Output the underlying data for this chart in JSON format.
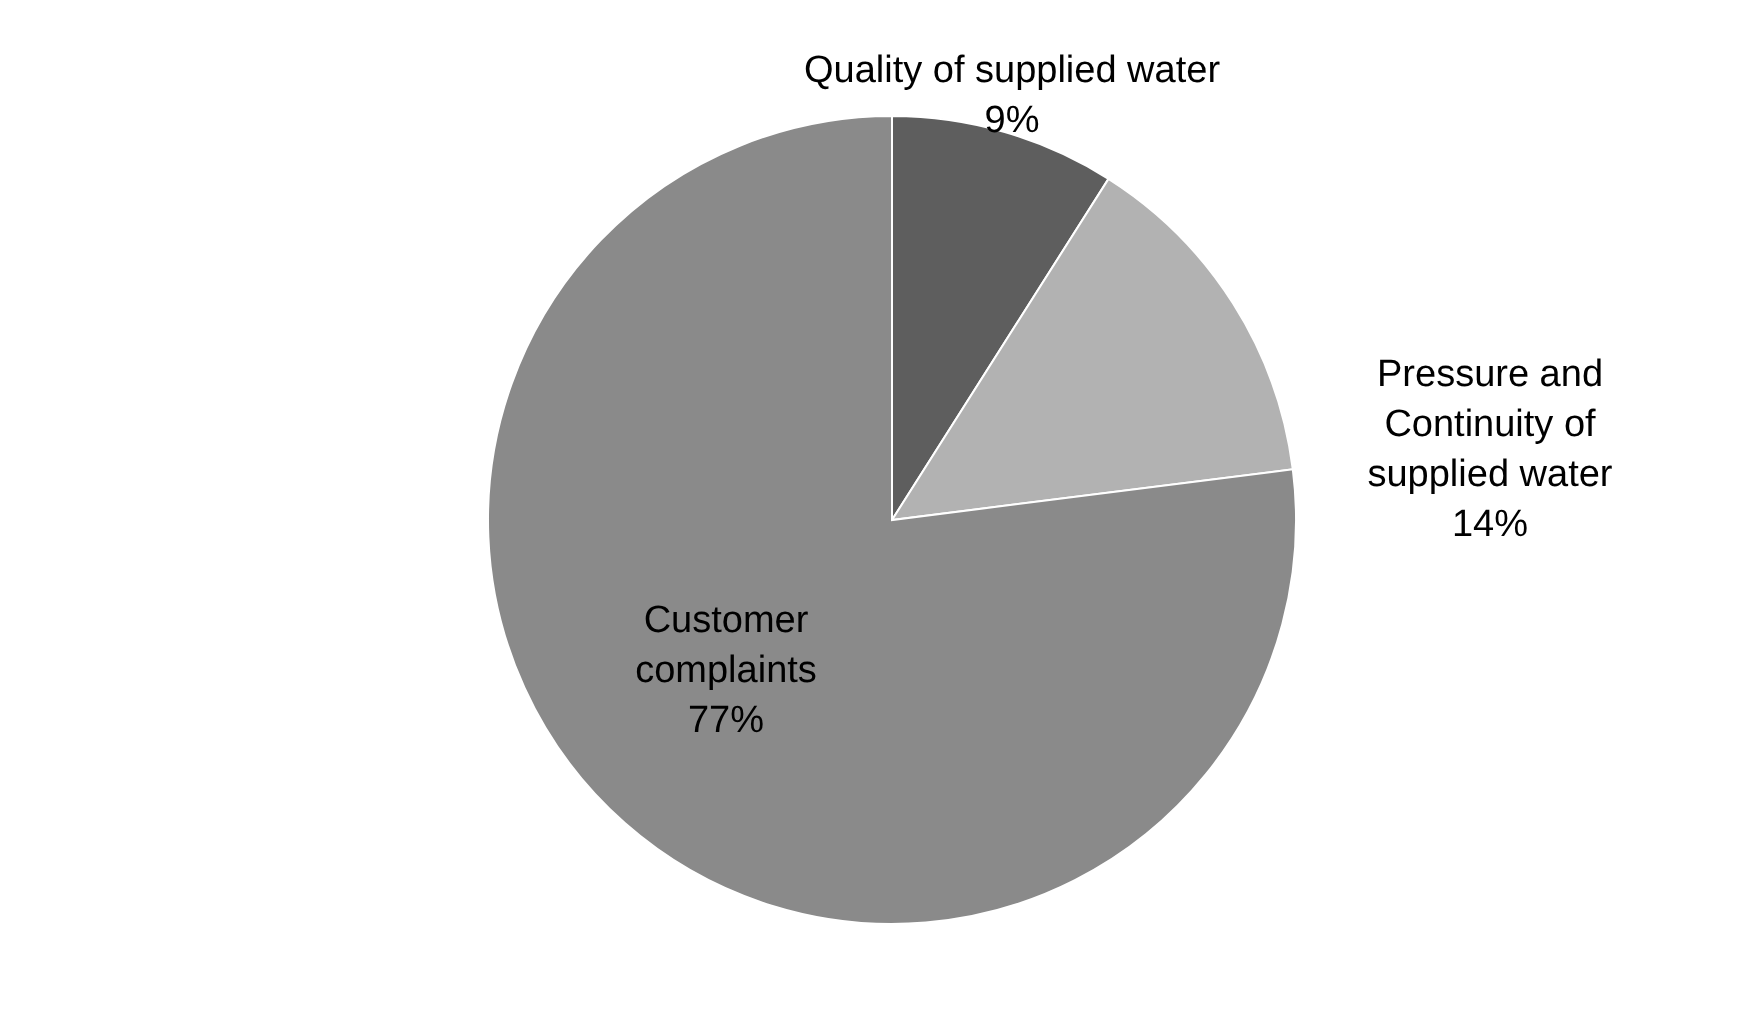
{
  "chart_data": {
    "type": "pie",
    "categories": [
      "Quality of supplied water",
      "Pressure and Continuity of supplied water",
      "Customer complaints"
    ],
    "values": [
      9,
      14,
      77
    ],
    "value_labels": [
      "9%",
      "14%",
      "77%"
    ],
    "colors": [
      "#5e5e5e",
      "#b2b2b2",
      "#8a8a8a"
    ]
  }
}
